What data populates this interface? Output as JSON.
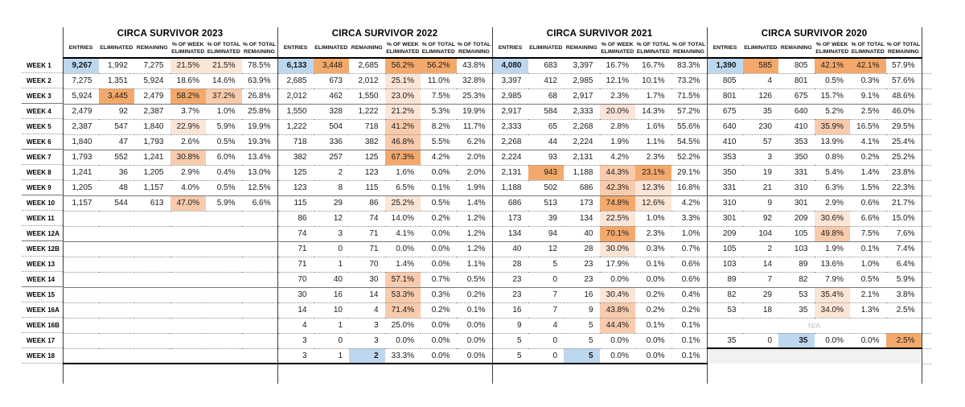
{
  "colors": {
    "blue_highlight": "#BDD7EE",
    "orange_light": "#FBE5D6",
    "orange_medium": "#F8CBAD",
    "orange_strong": "#F3A96C",
    "disabled_row": "#F1F1F1",
    "na_text_color": "#BFBFBF",
    "dotted_line": "#909090",
    "solid_line": "#767676",
    "section_line": "#3C3C3C",
    "thick_line": "#000000"
  },
  "chart_data": {
    "type": "table",
    "na_text": "N/A",
    "week_labels": [
      "WEEK 1",
      "WEEK 2",
      "WEEK 3",
      "WEEK 4",
      "WEEK 5",
      "WEEK 6",
      "WEEK 7",
      "WEEK 8",
      "WEEK 9",
      "WEEK 10",
      "WEEK 11",
      "WEEK 12A",
      "WEEK 12B",
      "WEEK 13",
      "WEEK 14",
      "WEEK 15",
      "WEEK 16A",
      "WEEK 16B",
      "WEEK 17",
      "WEEK 18"
    ],
    "columns": [
      {
        "lines": [
          "ENTRIES"
        ]
      },
      {
        "lines": [
          "ELIMINATED"
        ]
      },
      {
        "lines": [
          "REMAINING"
        ]
      },
      {
        "lines": [
          "% OF WEEK",
          "ELIMINATED"
        ]
      },
      {
        "lines": [
          "% OF TOTAL",
          "ELIMINATED"
        ]
      },
      {
        "lines": [
          "% OF TOTAL",
          "REMAINING"
        ]
      }
    ],
    "years": [
      {
        "title": "CIRCA SURVIVOR 2023",
        "rows": [
          [
            {
              "v": "9,267",
              "h": "b"
            },
            "1,992",
            "7,275",
            {
              "v": "21.5%",
              "h": "o1"
            },
            {
              "v": "21.5%",
              "h": "o1"
            },
            "78.5%"
          ],
          [
            "7,275",
            "1,351",
            "5,924",
            "18.6%",
            "14.6%",
            "63.9%"
          ],
          [
            "5,924",
            {
              "v": "3,445",
              "h": "o3"
            },
            "2,479",
            {
              "v": "58.2%",
              "h": "o3"
            },
            {
              "v": "37.2%",
              "h": "o2"
            },
            "26.8%"
          ],
          [
            "2,479",
            "92",
            "2,387",
            "3.7%",
            "1.0%",
            "25.8%"
          ],
          [
            "2,387",
            "547",
            "1,840",
            {
              "v": "22.9%",
              "h": "o1"
            },
            "5.9%",
            "19.9%"
          ],
          [
            "1,840",
            "47",
            "1,793",
            "2.6%",
            "0.5%",
            "19.3%"
          ],
          [
            "1,793",
            "552",
            "1,241",
            {
              "v": "30.8%",
              "h": "o2"
            },
            "6.0%",
            "13.4%"
          ],
          [
            "1,241",
            "36",
            "1,205",
            "2.9%",
            "0.4%",
            "13.0%"
          ],
          [
            "1,205",
            "48",
            "1,157",
            "4.0%",
            "0.5%",
            "12.5%"
          ],
          [
            "1,157",
            "544",
            "613",
            {
              "v": "47.0%",
              "h": "o2"
            },
            "5.9%",
            "6.6%"
          ],
          [
            "",
            "",
            "",
            "",
            "",
            ""
          ],
          [
            "",
            "",
            "",
            "",
            "",
            ""
          ],
          [
            "",
            "",
            "",
            "",
            "",
            ""
          ],
          [
            "",
            "",
            "",
            "",
            "",
            ""
          ],
          [
            "",
            "",
            "",
            "",
            "",
            ""
          ],
          [
            "",
            "",
            "",
            "",
            "",
            ""
          ],
          [
            "",
            "",
            "",
            "",
            "",
            ""
          ],
          [
            "",
            "",
            "",
            "",
            "",
            ""
          ],
          [
            "",
            "",
            "",
            "",
            "",
            ""
          ],
          [
            "",
            "",
            "",
            "",
            "",
            ""
          ]
        ]
      },
      {
        "title": "CIRCA SURVIVOR 2022",
        "rows": [
          [
            {
              "v": "6,133",
              "h": "b"
            },
            {
              "v": "3,448",
              "h": "o3"
            },
            "2,685",
            {
              "v": "56.2%",
              "h": "o3"
            },
            {
              "v": "56.2%",
              "h": "o3"
            },
            "43.8%"
          ],
          [
            "2,685",
            "673",
            "2,012",
            {
              "v": "25.1%",
              "h": "o1"
            },
            "11.0%",
            "32.8%"
          ],
          [
            "2,012",
            "462",
            "1,550",
            {
              "v": "23.0%",
              "h": "o1"
            },
            "7.5%",
            "25.3%"
          ],
          [
            "1,550",
            "328",
            "1,222",
            {
              "v": "21.2%",
              "h": "o1"
            },
            "5.3%",
            "19.9%"
          ],
          [
            "1,222",
            "504",
            "718",
            {
              "v": "41.2%",
              "h": "o2"
            },
            "8.2%",
            "11.7%"
          ],
          [
            "718",
            "336",
            "382",
            {
              "v": "46.8%",
              "h": "o2"
            },
            "5.5%",
            "6.2%"
          ],
          [
            "382",
            "257",
            "125",
            {
              "v": "67.3%",
              "h": "o3"
            },
            "4.2%",
            "2.0%"
          ],
          [
            "125",
            "2",
            "123",
            "1.6%",
            "0.0%",
            "2.0%"
          ],
          [
            "123",
            "8",
            "115",
            "6.5%",
            "0.1%",
            "1.9%"
          ],
          [
            "115",
            "29",
            "86",
            {
              "v": "25.2%",
              "h": "o1"
            },
            "0.5%",
            "1.4%"
          ],
          [
            "86",
            "12",
            "74",
            "14.0%",
            "0.2%",
            "1.2%"
          ],
          [
            "74",
            "3",
            "71",
            "4.1%",
            "0.0%",
            "1.2%"
          ],
          [
            "71",
            "0",
            "71",
            "0.0%",
            "0.0%",
            "1.2%"
          ],
          [
            "71",
            "1",
            "70",
            "1.4%",
            "0.0%",
            "1.1%"
          ],
          [
            "70",
            "40",
            "30",
            {
              "v": "57.1%",
              "h": "o2"
            },
            "0.7%",
            "0.5%"
          ],
          [
            "30",
            "16",
            "14",
            {
              "v": "53.3%",
              "h": "o2"
            },
            "0.3%",
            "0.2%"
          ],
          [
            "14",
            "10",
            "4",
            {
              "v": "71.4%",
              "h": "o2"
            },
            "0.2%",
            "0.1%"
          ],
          [
            "4",
            "1",
            "3",
            "25.0%",
            "0.0%",
            "0.0%"
          ],
          [
            "3",
            "0",
            "3",
            "0.0%",
            "0.0%",
            "0.0%"
          ],
          [
            "3",
            "1",
            {
              "v": "2",
              "h": "b"
            },
            "33.3%",
            "0.0%",
            "0.0%"
          ]
        ]
      },
      {
        "title": "CIRCA SURVIVOR 2021",
        "rows": [
          [
            {
              "v": "4,080",
              "h": "b"
            },
            "683",
            "3,397",
            "16.7%",
            "16.7%",
            "83.3%"
          ],
          [
            "3,397",
            "412",
            "2,985",
            "12.1%",
            "10.1%",
            "73.2%"
          ],
          [
            "2,985",
            "68",
            "2,917",
            "2.3%",
            "1.7%",
            "71.5%"
          ],
          [
            "2,917",
            "584",
            "2,333",
            {
              "v": "20.0%",
              "h": "o1"
            },
            "14.3%",
            "57.2%"
          ],
          [
            "2,333",
            "65",
            "2,268",
            "2.8%",
            "1.6%",
            "55.6%"
          ],
          [
            "2,268",
            "44",
            "2,224",
            "1.9%",
            "1.1%",
            "54.5%"
          ],
          [
            "2,224",
            "93",
            "2,131",
            "4.2%",
            "2.3%",
            "52.2%"
          ],
          [
            "2,131",
            {
              "v": "943",
              "h": "o3"
            },
            "1,188",
            {
              "v": "44.3%",
              "h": "o2"
            },
            {
              "v": "23.1%",
              "h": "o3"
            },
            "29.1%"
          ],
          [
            "1,188",
            "502",
            "686",
            {
              "v": "42.3%",
              "h": "o2"
            },
            {
              "v": "12.3%",
              "h": "o1"
            },
            "16.8%"
          ],
          [
            "686",
            "513",
            "173",
            {
              "v": "74.8%",
              "h": "o3"
            },
            {
              "v": "12.6%",
              "h": "o1"
            },
            "4.2%"
          ],
          [
            "173",
            "39",
            "134",
            {
              "v": "22.5%",
              "h": "o1"
            },
            "1.0%",
            "3.3%"
          ],
          [
            "134",
            "94",
            "40",
            {
              "v": "70.1%",
              "h": "o3"
            },
            "2.3%",
            "1.0%"
          ],
          [
            "40",
            "12",
            "28",
            {
              "v": "30.0%",
              "h": "o1"
            },
            "0.3%",
            "0.7%"
          ],
          [
            "28",
            "5",
            "23",
            "17.9%",
            "0.1%",
            "0.6%"
          ],
          [
            "23",
            "0",
            "23",
            "0.0%",
            "0.0%",
            "0.6%"
          ],
          [
            "23",
            "7",
            "16",
            {
              "v": "30.4%",
              "h": "o1"
            },
            "0.2%",
            "0.4%"
          ],
          [
            "16",
            "7",
            "9",
            {
              "v": "43.8%",
              "h": "o2"
            },
            "0.2%",
            "0.2%"
          ],
          [
            "9",
            "4",
            "5",
            {
              "v": "44.4%",
              "h": "o2"
            },
            "0.1%",
            "0.1%"
          ],
          [
            "5",
            "0",
            "5",
            "0.0%",
            "0.0%",
            "0.1%"
          ],
          [
            "5",
            "0",
            {
              "v": "5",
              "h": "b"
            },
            "0.0%",
            "0.0%",
            "0.1%"
          ]
        ]
      },
      {
        "title": "CIRCA SURVIVOR 2020",
        "rows": [
          [
            {
              "v": "1,390",
              "h": "b"
            },
            {
              "v": "585",
              "h": "o3"
            },
            "805",
            {
              "v": "42.1%",
              "h": "o3"
            },
            {
              "v": "42.1%",
              "h": "o3"
            },
            "57.9%"
          ],
          [
            "805",
            "4",
            "801",
            "0.5%",
            "0.3%",
            "57.6%"
          ],
          [
            "801",
            "126",
            "675",
            "15.7%",
            "9.1%",
            "48.6%"
          ],
          [
            "675",
            "35",
            "640",
            "5.2%",
            "2.5%",
            "46.0%"
          ],
          [
            "640",
            "230",
            "410",
            {
              "v": "35.9%",
              "h": "o2"
            },
            "16.5%",
            "29.5%"
          ],
          [
            "410",
            "57",
            "353",
            "13.9%",
            "4.1%",
            "25.4%"
          ],
          [
            "353",
            "3",
            "350",
            "0.8%",
            "0.2%",
            "25.2%"
          ],
          [
            "350",
            "19",
            "331",
            "5.4%",
            "1.4%",
            "23.8%"
          ],
          [
            "331",
            "21",
            "310",
            "6.3%",
            "1.5%",
            "22.3%"
          ],
          [
            "310",
            "9",
            "301",
            "2.9%",
            "0.6%",
            "21.7%"
          ],
          [
            "301",
            "92",
            "209",
            {
              "v": "30.6%",
              "h": "o1"
            },
            "6.6%",
            "15.0%"
          ],
          [
            "209",
            "104",
            "105",
            {
              "v": "49.8%",
              "h": "o2"
            },
            "7.5%",
            "7.6%"
          ],
          [
            "105",
            "2",
            "103",
            "1.9%",
            "0.1%",
            "7.4%"
          ],
          [
            "103",
            "14",
            "89",
            "13.6%",
            "1.0%",
            "6.4%"
          ],
          [
            "89",
            "7",
            "82",
            "7.9%",
            "0.5%",
            "5.9%"
          ],
          [
            "82",
            "29",
            "53",
            {
              "v": "35.4%",
              "h": "o1"
            },
            "2.1%",
            "3.8%"
          ],
          [
            "53",
            "18",
            "35",
            {
              "v": "34.0%",
              "h": "o1"
            },
            "1.3%",
            "2.5%"
          ],
          {
            "special": "na"
          },
          [
            "35",
            "0",
            {
              "v": "35",
              "h": "b"
            },
            "0.0%",
            "0.0%",
            {
              "v": "2.5%",
              "h": "o3"
            }
          ],
          {
            "special": "gray"
          }
        ]
      }
    ]
  }
}
